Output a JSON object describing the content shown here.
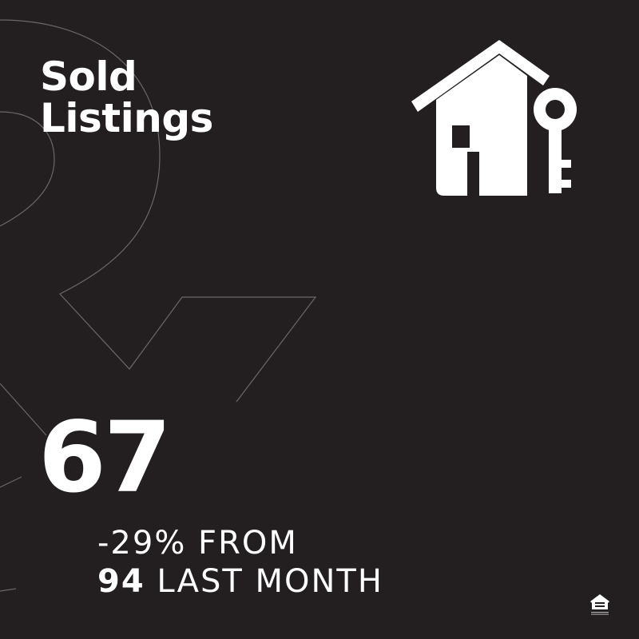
{
  "title": {
    "line1": "Sold",
    "line2": "Listings"
  },
  "stat": {
    "value": "67",
    "change_line": "-29% FROM",
    "previous_value": "94",
    "previous_label": "LAST MONTH"
  },
  "icons": {
    "main": "house-with-key-icon",
    "footer": "equal-housing-opportunity-logo"
  },
  "logo_text": "EQUAL HOUSING OPPORTUNITY",
  "colors": {
    "background": "#231f20",
    "text": "#ffffff",
    "outline": "#6b6768"
  }
}
